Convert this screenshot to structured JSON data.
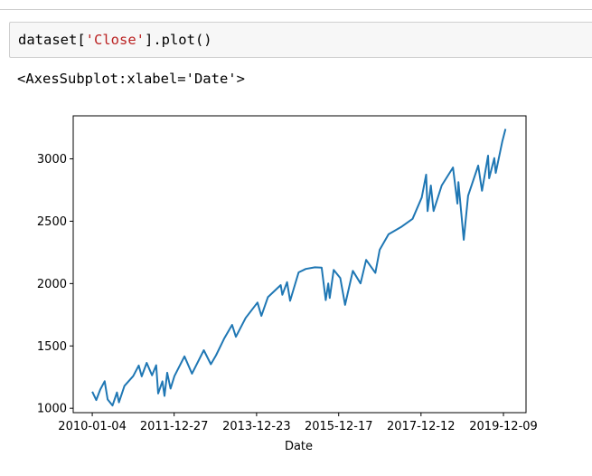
{
  "notebook": {
    "code_cell": {
      "prefix": "dataset[",
      "string_literal": "'Close'",
      "suffix": "].plot()"
    },
    "output_repr": "<AxesSubplot:xlabel='Date'>"
  },
  "chart_data": {
    "type": "line",
    "xlabel": "Date",
    "ylabel": "",
    "line_color": "#1f77b4",
    "grid": false,
    "legend": "none",
    "x_ticks": [
      "2010-01-04",
      "2011-12-27",
      "2013-12-23",
      "2015-12-17",
      "2017-12-12",
      "2019-12-09"
    ],
    "y_ticks": [
      1000,
      1500,
      2000,
      2500,
      3000
    ],
    "ylim": [
      965,
      3345
    ],
    "xlim": [
      "2009-07-20",
      "2020-06-25"
    ],
    "series": [
      {
        "x": [
          "2010-01-04",
          "2010-02-08",
          "2010-03-15",
          "2010-04-23",
          "2010-05-20",
          "2010-07-02",
          "2010-08-10",
          "2010-08-27",
          "2010-10-15",
          "2010-12-31",
          "2011-02-18",
          "2011-03-16",
          "2011-04-29",
          "2011-06-15",
          "2011-07-22",
          "2011-08-08",
          "2011-09-15",
          "2011-10-03",
          "2011-10-27",
          "2011-11-25",
          "2011-12-30",
          "2012-03-27",
          "2012-06-01",
          "2012-09-14",
          "2012-11-15",
          "2012-12-31",
          "2013-03-14",
          "2013-05-21",
          "2013-06-24",
          "2013-09-18",
          "2013-12-31",
          "2014-02-03",
          "2014-04-02",
          "2014-07-24",
          "2014-08-07",
          "2014-09-18",
          "2014-10-15",
          "2014-12-29",
          "2015-03-02",
          "2015-05-21",
          "2015-07-20",
          "2015-08-25",
          "2015-09-16",
          "2015-09-29",
          "2015-11-03",
          "2015-12-31",
          "2016-02-11",
          "2016-04-20",
          "2016-06-27",
          "2016-08-15",
          "2016-11-04",
          "2016-12-13",
          "2017-03-01",
          "2017-06-19",
          "2017-09-29",
          "2017-12-18",
          "2018-01-26",
          "2018-02-08",
          "2018-03-09",
          "2018-04-02",
          "2018-06-12",
          "2018-09-20",
          "2018-10-29",
          "2018-11-07",
          "2018-12-24",
          "2019-01-31",
          "2019-04-30",
          "2019-06-03",
          "2019-07-26",
          "2019-08-05",
          "2019-09-19",
          "2019-10-02",
          "2019-11-29",
          "2019-12-27"
        ],
        "values": [
          1133,
          1066,
          1150,
          1217,
          1071,
          1022,
          1127,
          1048,
          1180,
          1258,
          1343,
          1256,
          1364,
          1265,
          1345,
          1119,
          1216,
          1099,
          1285,
          1158,
          1258,
          1416,
          1278,
          1466,
          1353,
          1426,
          1563,
          1669,
          1573,
          1725,
          1848,
          1741,
          1891,
          1988,
          1910,
          2011,
          1862,
          2090,
          2117,
          2130,
          2128,
          1868,
          2001,
          1884,
          2109,
          2044,
          1829,
          2102,
          2001,
          2190,
          2085,
          2271,
          2395,
          2453,
          2519,
          2690,
          2873,
          2581,
          2786,
          2582,
          2786,
          2931,
          2641,
          2813,
          2351,
          2704,
          2946,
          2744,
          3026,
          2844,
          3006,
          2887,
          3141,
          3240
        ]
      }
    ]
  }
}
